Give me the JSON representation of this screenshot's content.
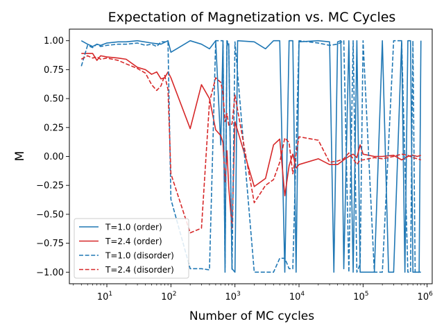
{
  "chart_data": {
    "type": "line",
    "title": "Expectation of Magnetization vs. MC Cycles",
    "xlabel": "Number of MC cycles",
    "ylabel": "M",
    "xscale": "log",
    "xlim": [
      2.6,
      1200000
    ],
    "ylim": [
      -1.1,
      1.1
    ],
    "x_ticks": [
      10,
      100,
      1000,
      10000,
      100000,
      1000000
    ],
    "x_tick_labels": [
      {
        "base": "10",
        "exp": "1"
      },
      {
        "base": "10",
        "exp": "2"
      },
      {
        "base": "10",
        "exp": "3"
      },
      {
        "base": "10",
        "exp": "4"
      },
      {
        "base": "10",
        "exp": "5"
      },
      {
        "base": "10",
        "exp": "6"
      }
    ],
    "y_ticks": [
      -1.0,
      -0.75,
      -0.5,
      -0.25,
      0.0,
      0.25,
      0.5,
      0.75,
      1.0
    ],
    "y_tick_labels": [
      "−1.00",
      "−0.75",
      "−0.50",
      "−0.25",
      "0.00",
      "0.25",
      "0.50",
      "0.75",
      "1.00"
    ],
    "legend_position": "lower-left",
    "grid": false,
    "series": [
      {
        "name": "T=1.0 (order)",
        "color": "#1f77b4",
        "style": "solid",
        "points": [
          [
            4,
            1.0
          ],
          [
            5,
            0.97
          ],
          [
            6,
            0.95
          ],
          [
            7,
            0.97
          ],
          [
            8,
            0.96
          ],
          [
            10,
            0.98
          ],
          [
            15,
            0.99
          ],
          [
            20,
            0.99
          ],
          [
            30,
            1.0
          ],
          [
            50,
            0.98
          ],
          [
            70,
            0.97
          ],
          [
            90,
            1.0
          ],
          [
            100,
            0.9
          ],
          [
            200,
            1.0
          ],
          [
            300,
            0.97
          ],
          [
            400,
            0.93
          ],
          [
            500,
            1.0
          ],
          [
            600,
            0.1
          ],
          [
            650,
            1.0
          ],
          [
            700,
            -1.0
          ],
          [
            750,
            1.0
          ],
          [
            800,
            0.95
          ],
          [
            900,
            -0.97
          ],
          [
            1000,
            -1.0
          ],
          [
            1100,
            1.0
          ],
          [
            2000,
            0.99
          ],
          [
            3000,
            0.93
          ],
          [
            4000,
            1.0
          ],
          [
            5000,
            1.0
          ],
          [
            6000,
            -1.0
          ],
          [
            7000,
            1.0
          ],
          [
            8000,
            1.0
          ],
          [
            9000,
            -1.0
          ],
          [
            10000,
            0.99
          ],
          [
            20000,
            1.0
          ],
          [
            30000,
            0.99
          ],
          [
            35000,
            -1.0
          ],
          [
            40000,
            0.99
          ],
          [
            45000,
            1.0
          ],
          [
            50000,
            -0.97
          ],
          [
            60000,
            1.0
          ],
          [
            70000,
            -1.0
          ],
          [
            80000,
            1.0
          ],
          [
            90000,
            -1.0
          ],
          [
            100000,
            -1.0
          ],
          [
            150000,
            -1.0
          ],
          [
            200000,
            1.0
          ],
          [
            250000,
            -1.0
          ],
          [
            300000,
            -1.0
          ],
          [
            400000,
            1.0
          ],
          [
            450000,
            -1.0
          ],
          [
            500000,
            1.0
          ],
          [
            550000,
            1.0
          ],
          [
            600000,
            -1.0
          ],
          [
            650000,
            -1.0
          ],
          [
            750000,
            -1.0
          ],
          [
            800000,
            1.0
          ]
        ]
      },
      {
        "name": "T=2.4 (order)",
        "color": "#d62728",
        "style": "solid",
        "points": [
          [
            4,
            0.89
          ],
          [
            5,
            0.89
          ],
          [
            6,
            0.89
          ],
          [
            7,
            0.83
          ],
          [
            8,
            0.87
          ],
          [
            10,
            0.86
          ],
          [
            15,
            0.85
          ],
          [
            20,
            0.84
          ],
          [
            30,
            0.77
          ],
          [
            40,
            0.75
          ],
          [
            50,
            0.71
          ],
          [
            60,
            0.73
          ],
          [
            70,
            0.67
          ],
          [
            80,
            0.68
          ],
          [
            90,
            0.73
          ],
          [
            100,
            0.68
          ],
          [
            200,
            0.24
          ],
          [
            300,
            0.62
          ],
          [
            400,
            0.5
          ],
          [
            500,
            0.23
          ],
          [
            600,
            0.18
          ],
          [
            650,
            0.12
          ],
          [
            700,
            -0.22
          ],
          [
            750,
            0.05
          ],
          [
            800,
            -0.27
          ],
          [
            900,
            -0.62
          ],
          [
            1000,
            0.3
          ],
          [
            2000,
            -0.26
          ],
          [
            3000,
            -0.19
          ],
          [
            4000,
            0.1
          ],
          [
            5000,
            0.15
          ],
          [
            6000,
            -0.34
          ],
          [
            7000,
            -0.08
          ],
          [
            8000,
            0.02
          ],
          [
            9000,
            -0.1
          ],
          [
            10000,
            -0.07
          ],
          [
            20000,
            -0.02
          ],
          [
            30000,
            -0.07
          ],
          [
            40000,
            -0.07
          ],
          [
            50000,
            -0.03
          ],
          [
            60000,
            0.0
          ],
          [
            70000,
            0.02
          ],
          [
            80000,
            -0.01
          ],
          [
            90000,
            0.1
          ],
          [
            100000,
            0.02
          ],
          [
            150000,
            0.0
          ],
          [
            200000,
            0.0
          ],
          [
            300000,
            0.01
          ],
          [
            400000,
            -0.03
          ],
          [
            500000,
            0.0
          ],
          [
            600000,
            0.01
          ],
          [
            700000,
            0.0
          ],
          [
            800000,
            0.01
          ]
        ]
      },
      {
        "name": "T=1.0 (disorder)",
        "color": "#1f77b4",
        "style": "dashed",
        "points": [
          [
            4,
            0.78
          ],
          [
            5,
            0.96
          ],
          [
            6,
            0.94
          ],
          [
            7,
            0.97
          ],
          [
            8,
            0.95
          ],
          [
            10,
            0.96
          ],
          [
            15,
            0.97
          ],
          [
            20,
            0.97
          ],
          [
            30,
            0.98
          ],
          [
            40,
            0.96
          ],
          [
            50,
            0.97
          ],
          [
            60,
            0.95
          ],
          [
            70,
            0.99
          ],
          [
            80,
            0.99
          ],
          [
            90,
            0.99
          ],
          [
            100,
            -0.37
          ],
          [
            200,
            -0.97
          ],
          [
            300,
            -0.97
          ],
          [
            400,
            -0.98
          ],
          [
            500,
            1.0
          ],
          [
            600,
            1.0
          ],
          [
            650,
            1.0
          ],
          [
            700,
            -0.96
          ],
          [
            750,
            1.0
          ],
          [
            800,
            0.98
          ],
          [
            900,
            -0.98
          ],
          [
            1000,
            0.99
          ],
          [
            2000,
            -1.0
          ],
          [
            3000,
            -1.0
          ],
          [
            4000,
            -1.0
          ],
          [
            5000,
            -0.88
          ],
          [
            6000,
            -0.88
          ],
          [
            7000,
            -0.97
          ],
          [
            8000,
            -0.97
          ],
          [
            10000,
            1.0
          ],
          [
            20000,
            0.98
          ],
          [
            30000,
            0.96
          ],
          [
            40000,
            0.97
          ],
          [
            50000,
            1.0
          ],
          [
            60000,
            -1.0
          ],
          [
            70000,
            1.0
          ],
          [
            80000,
            -1.0
          ],
          [
            90000,
            -0.93
          ],
          [
            100000,
            1.0
          ],
          [
            150000,
            -1.0
          ],
          [
            200000,
            -1.0
          ],
          [
            300000,
            1.0
          ],
          [
            400000,
            1.0
          ],
          [
            500000,
            -1.0
          ],
          [
            550000,
            -1.0
          ],
          [
            600000,
            1.0
          ],
          [
            650000,
            -1.0
          ],
          [
            700000,
            -1.0
          ],
          [
            800000,
            -1.0
          ]
        ]
      },
      {
        "name": "T=2.4 (disorder)",
        "color": "#d62728",
        "style": "dashed",
        "points": [
          [
            4,
            0.84
          ],
          [
            5,
            0.87
          ],
          [
            6,
            0.85
          ],
          [
            7,
            0.86
          ],
          [
            8,
            0.84
          ],
          [
            10,
            0.85
          ],
          [
            15,
            0.83
          ],
          [
            20,
            0.8
          ],
          [
            30,
            0.76
          ],
          [
            40,
            0.72
          ],
          [
            50,
            0.62
          ],
          [
            60,
            0.57
          ],
          [
            70,
            0.61
          ],
          [
            80,
            0.7
          ],
          [
            90,
            0.58
          ],
          [
            100,
            -0.15
          ],
          [
            200,
            -0.66
          ],
          [
            300,
            -0.62
          ],
          [
            400,
            0.47
          ],
          [
            500,
            0.68
          ],
          [
            600,
            0.64
          ],
          [
            650,
            0.55
          ],
          [
            700,
            0.3
          ],
          [
            750,
            0.37
          ],
          [
            800,
            0.27
          ],
          [
            900,
            0.28
          ],
          [
            1000,
            0.53
          ],
          [
            2000,
            -0.4
          ],
          [
            3000,
            -0.25
          ],
          [
            4000,
            -0.2
          ],
          [
            5000,
            -0.05
          ],
          [
            6000,
            0.16
          ],
          [
            7000,
            0.12
          ],
          [
            8000,
            -0.15
          ],
          [
            10000,
            0.17
          ],
          [
            20000,
            0.14
          ],
          [
            30000,
            -0.05
          ],
          [
            40000,
            -0.04
          ],
          [
            50000,
            -0.02
          ],
          [
            60000,
            0.03
          ],
          [
            70000,
            -0.02
          ],
          [
            80000,
            -0.07
          ],
          [
            90000,
            -0.03
          ],
          [
            100000,
            -0.03
          ],
          [
            150000,
            -0.01
          ],
          [
            200000,
            -0.02
          ],
          [
            300000,
            0.0
          ],
          [
            400000,
            0.02
          ],
          [
            500000,
            0.01
          ],
          [
            600000,
            -0.01
          ],
          [
            700000,
            -0.02
          ],
          [
            800000,
            -0.03
          ]
        ]
      }
    ]
  }
}
